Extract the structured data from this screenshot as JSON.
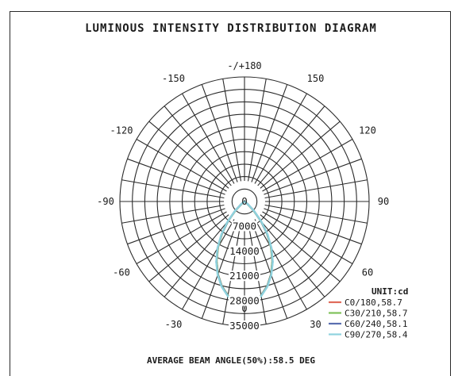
{
  "chart_data": {
    "type": "polar",
    "title": "LUMINOUS INTENSITY DISTRIBUTION DIAGRAM",
    "footer": "AVERAGE BEAM ANGLE(50%):58.5 DEG",
    "unit_label": "UNIT:cd",
    "angle_labels": [
      {
        "angle": 180,
        "text": "-/+180"
      },
      {
        "angle": -150,
        "text": "-150"
      },
      {
        "angle": 150,
        "text": "150"
      },
      {
        "angle": -120,
        "text": "-120"
      },
      {
        "angle": 120,
        "text": "120"
      },
      {
        "angle": -90,
        "text": "-90"
      },
      {
        "angle": 90,
        "text": "90"
      },
      {
        "angle": -60,
        "text": "-60"
      },
      {
        "angle": 60,
        "text": "60"
      },
      {
        "angle": -30,
        "text": "-30"
      },
      {
        "angle": 30,
        "text": "30"
      },
      {
        "angle": 0,
        "text": "0"
      }
    ],
    "radial_ticks": [
      {
        "value": 0,
        "text": "0"
      },
      {
        "value": 7000,
        "text": "7000"
      },
      {
        "value": 14000,
        "text": "14000"
      },
      {
        "value": 21000,
        "text": "21000"
      },
      {
        "value": 28000,
        "text": "28000"
      },
      {
        "value": 35000,
        "text": "35000"
      }
    ],
    "r_max": 35000,
    "angular_grid_step_deg": 10,
    "grid": true,
    "legend_position": "bottom-right",
    "series": [
      {
        "name": "C0/180,58.7",
        "color": "#e06b5a",
        "angles": [
          0,
          5,
          10,
          15,
          20,
          25,
          30,
          35,
          40,
          45,
          50,
          55,
          60
        ],
        "values": [
          29000,
          28400,
          26800,
          24600,
          21800,
          18500,
          14900,
          11000,
          7100,
          3600,
          1200,
          300,
          0
        ]
      },
      {
        "name": "C30/210,58.7",
        "color": "#7fc25a",
        "angles": [
          0,
          5,
          10,
          15,
          20,
          25,
          30,
          35,
          40,
          45,
          50,
          55,
          60
        ],
        "values": [
          29000,
          28400,
          26800,
          24600,
          21800,
          18500,
          14900,
          11000,
          7100,
          3600,
          1200,
          300,
          0
        ]
      },
      {
        "name": "C60/240,58.1",
        "color": "#5a6fb0",
        "angles": [
          0,
          5,
          10,
          15,
          20,
          25,
          30,
          35,
          40,
          45,
          50,
          55,
          60
        ],
        "values": [
          29000,
          28400,
          26900,
          24700,
          21900,
          18700,
          15100,
          11200,
          7300,
          3800,
          1300,
          300,
          0
        ]
      },
      {
        "name": "C90/270,58.4",
        "color": "#8fd3de",
        "angles": [
          0,
          5,
          10,
          15,
          20,
          25,
          30,
          35,
          40,
          45,
          50,
          55,
          60
        ],
        "values": [
          29000,
          28500,
          27000,
          24800,
          22000,
          18800,
          15200,
          11300,
          7400,
          3900,
          1400,
          300,
          0
        ]
      }
    ]
  }
}
